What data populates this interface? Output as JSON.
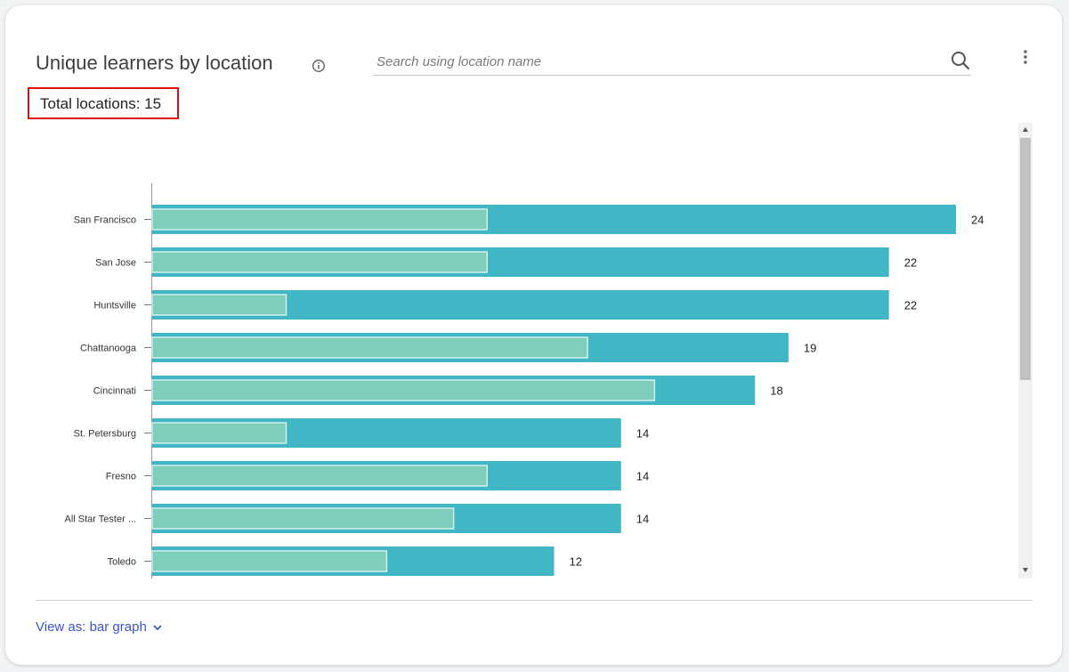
{
  "header": {
    "title": "Unique learners by location",
    "total_label": "Total locations: 15"
  },
  "search": {
    "placeholder": "Search using location name",
    "value": ""
  },
  "footer": {
    "view_as_label": "View as: bar graph"
  },
  "colors": {
    "outer_bar": "#41b6c4",
    "inner_bar": "#7fcdbb",
    "inner_bar_border": "#d4efe8",
    "highlight_border": "#e01010",
    "link": "#3a55c7"
  },
  "icons": {
    "info": "info-icon",
    "search": "search-icon",
    "menu": "more-vertical-icon",
    "chevron": "chevron-down-icon"
  },
  "chart_data": {
    "type": "bar",
    "orientation": "horizontal",
    "categories": [
      "San Francisco",
      "San Jose",
      "Huntsville",
      "Chattanooga",
      "Cincinnati",
      "St. Petersburg",
      "Fresno",
      "All Star Tester ...",
      "Toledo"
    ],
    "series": [
      {
        "values": [
          24,
          22,
          22,
          19,
          18,
          14,
          14,
          14,
          12
        ]
      },
      {
        "values": [
          10,
          10,
          4,
          13,
          15,
          4,
          10,
          9,
          7
        ]
      }
    ],
    "value_labels": [
      "24",
      "22",
      "22",
      "19",
      "18",
      "14",
      "14",
      "14",
      "12"
    ],
    "xlim": [
      0,
      24
    ]
  }
}
